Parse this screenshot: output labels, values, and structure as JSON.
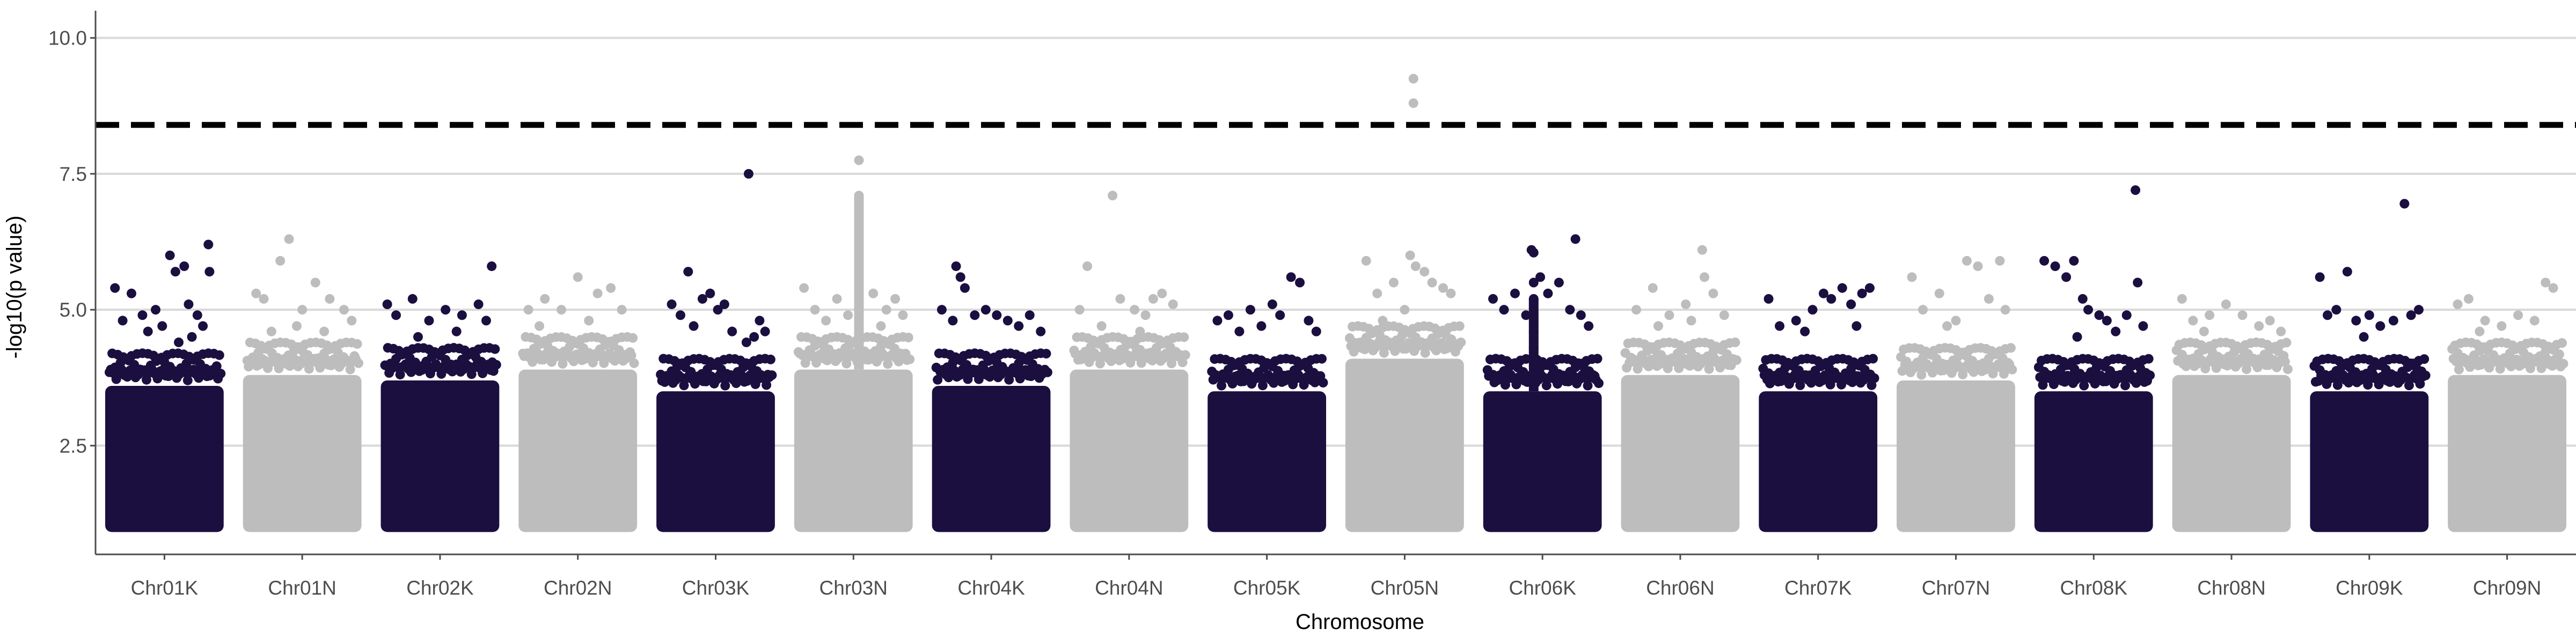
{
  "chart_data": {
    "type": "scatter",
    "title": "",
    "xlabel": "Chromosome",
    "ylabel": "-log10(p value)",
    "ylim": [
      0.5,
      10.5
    ],
    "yticks": [
      2.5,
      5.0,
      7.5,
      10.0
    ],
    "ytick_labels": [
      "2.5",
      "5.0",
      "7.5",
      "10.0"
    ],
    "y_min_plotted": 1.0,
    "grid": "horizontal major lines",
    "legend": "none",
    "significance_threshold": 8.4,
    "colors": {
      "odd": "#1b0f40",
      "even": "#bdbdbd",
      "threshold": "#000000",
      "grid": "#d9d9d9",
      "axis": "#4d4d4d"
    },
    "categories": [
      "Chr01K",
      "Chr01N",
      "Chr02K",
      "Chr02N",
      "Chr03K",
      "Chr03N",
      "Chr04K",
      "Chr04N",
      "Chr05K",
      "Chr05N",
      "Chr06K",
      "Chr06N",
      "Chr07K",
      "Chr07N",
      "Chr08K",
      "Chr08N",
      "Chr09K",
      "Chr09N"
    ],
    "series": [
      {
        "chromosome": "Chr01K",
        "dense_top": 3.6,
        "points": [
          [
            0.05,
            5.4
          ],
          [
            0.12,
            4.8
          ],
          [
            0.2,
            5.3
          ],
          [
            0.3,
            4.9
          ],
          [
            0.42,
            5.0
          ],
          [
            0.55,
            6.0
          ],
          [
            0.6,
            5.7
          ],
          [
            0.68,
            5.8
          ],
          [
            0.72,
            5.1
          ],
          [
            0.8,
            4.9
          ],
          [
            0.9,
            6.2
          ],
          [
            0.91,
            5.7
          ],
          [
            0.35,
            4.6
          ],
          [
            0.48,
            4.7
          ],
          [
            0.63,
            4.4
          ],
          [
            0.75,
            4.5
          ],
          [
            0.85,
            4.7
          ]
        ]
      },
      {
        "chromosome": "Chr01N",
        "dense_top": 3.8,
        "points": [
          [
            0.08,
            5.3
          ],
          [
            0.15,
            5.2
          ],
          [
            0.3,
            5.9
          ],
          [
            0.38,
            6.3
          ],
          [
            0.5,
            5.0
          ],
          [
            0.62,
            5.5
          ],
          [
            0.75,
            5.2
          ],
          [
            0.88,
            5.0
          ],
          [
            0.95,
            4.8
          ],
          [
            0.22,
            4.6
          ],
          [
            0.45,
            4.7
          ],
          [
            0.7,
            4.6
          ]
        ]
      },
      {
        "chromosome": "Chr02K",
        "dense_top": 3.7,
        "points": [
          [
            0.02,
            5.1
          ],
          [
            0.1,
            4.9
          ],
          [
            0.25,
            5.2
          ],
          [
            0.4,
            4.8
          ],
          [
            0.55,
            5.0
          ],
          [
            0.7,
            4.9
          ],
          [
            0.85,
            5.1
          ],
          [
            0.92,
            4.8
          ],
          [
            0.97,
            5.8
          ],
          [
            0.3,
            4.5
          ],
          [
            0.65,
            4.6
          ]
        ]
      },
      {
        "chromosome": "Chr02N",
        "dense_top": 3.9,
        "points": [
          [
            0.05,
            5.0
          ],
          [
            0.2,
            5.2
          ],
          [
            0.35,
            5.0
          ],
          [
            0.5,
            5.6
          ],
          [
            0.68,
            5.3
          ],
          [
            0.8,
            5.4
          ],
          [
            0.9,
            5.0
          ],
          [
            0.15,
            4.7
          ],
          [
            0.6,
            4.8
          ]
        ]
      },
      {
        "chromosome": "Chr03K",
        "dense_top": 3.5,
        "points": [
          [
            0.1,
            5.1
          ],
          [
            0.18,
            4.9
          ],
          [
            0.25,
            5.7
          ],
          [
            0.38,
            5.2
          ],
          [
            0.45,
            5.3
          ],
          [
            0.52,
            5.0
          ],
          [
            0.58,
            5.1
          ],
          [
            0.65,
            4.6
          ],
          [
            0.78,
            4.4
          ],
          [
            0.85,
            4.5
          ],
          [
            0.9,
            4.8
          ],
          [
            0.95,
            4.6
          ],
          [
            0.8,
            7.5
          ],
          [
            0.3,
            4.7
          ]
        ]
      },
      {
        "chromosome": "Chr03N",
        "dense_top": 3.9,
        "points": [
          [
            0.05,
            5.4
          ],
          [
            0.15,
            5.0
          ],
          [
            0.25,
            4.8
          ],
          [
            0.35,
            5.2
          ],
          [
            0.68,
            5.3
          ],
          [
            0.8,
            5.0
          ],
          [
            0.88,
            5.2
          ],
          [
            0.95,
            4.9
          ],
          [
            0.45,
            4.9
          ],
          [
            0.75,
            4.7
          ]
        ],
        "spike": {
          "x": 0.55,
          "values": [
            5.2,
            5.6,
            6.0,
            6.3,
            6.6,
            6.9,
            7.1,
            7.75
          ]
        }
      },
      {
        "chromosome": "Chr04K",
        "dense_top": 3.6,
        "points": [
          [
            0.05,
            5.0
          ],
          [
            0.15,
            4.8
          ],
          [
            0.18,
            5.8
          ],
          [
            0.22,
            5.6
          ],
          [
            0.26,
            5.4
          ],
          [
            0.35,
            4.9
          ],
          [
            0.45,
            5.0
          ],
          [
            0.55,
            4.9
          ],
          [
            0.65,
            4.8
          ],
          [
            0.75,
            4.7
          ],
          [
            0.85,
            4.9
          ],
          [
            0.95,
            4.6
          ]
        ]
      },
      {
        "chromosome": "Chr04N",
        "dense_top": 3.9,
        "points": [
          [
            0.05,
            5.0
          ],
          [
            0.12,
            5.8
          ],
          [
            0.35,
            7.1
          ],
          [
            0.42,
            5.2
          ],
          [
            0.55,
            5.0
          ],
          [
            0.65,
            4.9
          ],
          [
            0.72,
            5.2
          ],
          [
            0.8,
            5.3
          ],
          [
            0.9,
            5.1
          ],
          [
            0.25,
            4.7
          ],
          [
            0.6,
            4.6
          ]
        ]
      },
      {
        "chromosome": "Chr05K",
        "dense_top": 3.5,
        "points": [
          [
            0.05,
            4.8
          ],
          [
            0.15,
            4.9
          ],
          [
            0.25,
            4.6
          ],
          [
            0.35,
            5.0
          ],
          [
            0.45,
            4.7
          ],
          [
            0.55,
            5.1
          ],
          [
            0.62,
            4.9
          ],
          [
            0.72,
            5.6
          ],
          [
            0.8,
            5.5
          ],
          [
            0.88,
            4.8
          ],
          [
            0.95,
            4.6
          ]
        ]
      },
      {
        "chromosome": "Chr05N",
        "dense_top": 4.1,
        "points": [
          [
            0.15,
            5.9
          ],
          [
            0.25,
            5.3
          ],
          [
            0.4,
            5.5
          ],
          [
            0.55,
            6.0
          ],
          [
            0.6,
            5.8
          ],
          [
            0.68,
            5.7
          ],
          [
            0.75,
            5.5
          ],
          [
            0.85,
            5.4
          ],
          [
            0.92,
            5.3
          ],
          [
            0.3,
            4.8
          ],
          [
            0.5,
            5.0
          ],
          [
            0.58,
            9.25
          ],
          [
            0.58,
            8.8
          ]
        ]
      },
      {
        "chromosome": "Chr06K",
        "dense_top": 3.5,
        "points": [
          [
            0.05,
            5.2
          ],
          [
            0.15,
            5.0
          ],
          [
            0.25,
            5.3
          ],
          [
            0.35,
            4.9
          ],
          [
            0.4,
            6.1
          ],
          [
            0.42,
            6.05
          ],
          [
            0.48,
            5.6
          ],
          [
            0.55,
            5.3
          ],
          [
            0.65,
            5.5
          ],
          [
            0.75,
            5.0
          ],
          [
            0.8,
            6.3
          ],
          [
            0.85,
            4.9
          ],
          [
            0.92,
            4.7
          ]
        ],
        "spike": {
          "x": 0.42,
          "values": [
            4.3,
            4.6,
            4.9,
            5.2,
            5.5
          ]
        }
      },
      {
        "chromosome": "Chr06N",
        "dense_top": 3.8,
        "points": [
          [
            0.1,
            5.0
          ],
          [
            0.25,
            5.4
          ],
          [
            0.4,
            4.9
          ],
          [
            0.55,
            5.1
          ],
          [
            0.7,
            6.1
          ],
          [
            0.72,
            5.6
          ],
          [
            0.8,
            5.3
          ],
          [
            0.9,
            4.9
          ],
          [
            0.3,
            4.7
          ],
          [
            0.6,
            4.8
          ]
        ]
      },
      {
        "chromosome": "Chr07K",
        "dense_top": 3.5,
        "points": [
          [
            0.05,
            5.2
          ],
          [
            0.15,
            4.7
          ],
          [
            0.3,
            4.8
          ],
          [
            0.45,
            5.0
          ],
          [
            0.55,
            5.3
          ],
          [
            0.62,
            5.2
          ],
          [
            0.72,
            5.4
          ],
          [
            0.8,
            5.1
          ],
          [
            0.9,
            5.3
          ],
          [
            0.97,
            5.4
          ],
          [
            0.38,
            4.6
          ],
          [
            0.85,
            4.7
          ]
        ]
      },
      {
        "chromosome": "Chr07N",
        "dense_top": 3.7,
        "points": [
          [
            0.1,
            5.6
          ],
          [
            0.2,
            5.0
          ],
          [
            0.35,
            5.3
          ],
          [
            0.5,
            4.8
          ],
          [
            0.6,
            5.9
          ],
          [
            0.7,
            5.8
          ],
          [
            0.8,
            5.2
          ],
          [
            0.9,
            5.9
          ],
          [
            0.95,
            5.0
          ],
          [
            0.42,
            4.7
          ]
        ]
      },
      {
        "chromosome": "Chr08K",
        "dense_top": 3.5,
        "points": [
          [
            0.05,
            5.9
          ],
          [
            0.15,
            5.8
          ],
          [
            0.25,
            5.6
          ],
          [
            0.32,
            5.9
          ],
          [
            0.4,
            5.2
          ],
          [
            0.45,
            5.0
          ],
          [
            0.55,
            4.9
          ],
          [
            0.62,
            4.8
          ],
          [
            0.7,
            4.6
          ],
          [
            0.8,
            4.9
          ],
          [
            0.88,
            7.2
          ],
          [
            0.9,
            5.5
          ],
          [
            0.95,
            4.7
          ],
          [
            0.35,
            4.5
          ]
        ]
      },
      {
        "chromosome": "Chr08N",
        "dense_top": 3.8,
        "points": [
          [
            0.05,
            5.2
          ],
          [
            0.15,
            4.8
          ],
          [
            0.3,
            4.9
          ],
          [
            0.45,
            5.1
          ],
          [
            0.6,
            4.9
          ],
          [
            0.75,
            4.7
          ],
          [
            0.85,
            4.8
          ],
          [
            0.95,
            4.6
          ],
          [
            0.25,
            4.6
          ]
        ]
      },
      {
        "chromosome": "Chr09K",
        "dense_top": 3.5,
        "points": [
          [
            0.05,
            5.6
          ],
          [
            0.12,
            4.9
          ],
          [
            0.2,
            5.0
          ],
          [
            0.3,
            5.7
          ],
          [
            0.38,
            4.8
          ],
          [
            0.5,
            4.9
          ],
          [
            0.6,
            4.7
          ],
          [
            0.72,
            4.8
          ],
          [
            0.82,
            6.95
          ],
          [
            0.88,
            4.9
          ],
          [
            0.95,
            5.0
          ],
          [
            0.45,
            4.5
          ]
        ]
      },
      {
        "chromosome": "Chr09N",
        "dense_top": 3.8,
        "points": [
          [
            0.05,
            5.1
          ],
          [
            0.15,
            5.2
          ],
          [
            0.3,
            4.8
          ],
          [
            0.45,
            4.7
          ],
          [
            0.6,
            4.9
          ],
          [
            0.75,
            4.8
          ],
          [
            0.85,
            5.5
          ],
          [
            0.92,
            5.4
          ],
          [
            0.25,
            4.6
          ]
        ]
      }
    ]
  }
}
